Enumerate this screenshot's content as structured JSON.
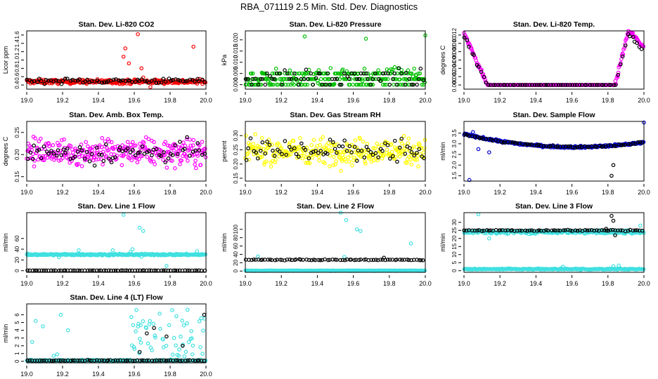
{
  "page": {
    "title": "RBA_071119  2.5 Min. Std. Dev. Diagnostics"
  },
  "chart_data": [
    {
      "type": "scatter",
      "title": "Stan. Dev. Li-820 CO2",
      "xlabel": "",
      "ylabel": "Licor ppm",
      "xlim": [
        19.0,
        20.0
      ],
      "ylim": [
        0.3,
        1.7
      ],
      "xticks": [
        19.0,
        19.2,
        19.4,
        19.6,
        19.8,
        20.0
      ],
      "xtick_labels": [
        "19.0",
        "19.2",
        "19.4",
        "19.6",
        "19.8",
        "20.0"
      ],
      "yticks": [
        0.4,
        0.6,
        0.8,
        1.0,
        1.2,
        1.4,
        1.6
      ],
      "ytick_labels": [
        "0.4",
        "0.6",
        "0.8",
        "1.0",
        "1.2",
        "1.4",
        "1.6"
      ],
      "colors": [
        "#ff0000",
        "#000000"
      ],
      "series": [
        {
          "name": "main",
          "color": "#ff0000",
          "base": 0.48,
          "noise": 0.05,
          "outliers": [
            [
              19.54,
              1.08
            ],
            [
              19.55,
              1.28
            ],
            [
              19.57,
              0.92
            ],
            [
              19.62,
              1.62
            ],
            [
              19.64,
              0.8
            ],
            [
              19.65,
              0.58
            ],
            [
              19.93,
              1.32
            ],
            [
              19.69,
              0.35
            ],
            [
              19.6,
              0.52
            ]
          ]
        },
        {
          "name": "secondary",
          "color": "#000000",
          "base": 0.5,
          "noise": 0.06,
          "outliers": []
        }
      ]
    },
    {
      "type": "scatter",
      "title": "Stan. Dev. Li-820 Pressure",
      "xlabel": "",
      "ylabel": "kPa",
      "xlim": [
        19.0,
        20.0
      ],
      "ylim": [
        -0.002,
        0.024
      ],
      "xticks": [
        19.0,
        19.2,
        19.4,
        19.6,
        19.8,
        20.0
      ],
      "xtick_labels": [
        "19.0",
        "19.2",
        "19.4",
        "19.6",
        "19.8",
        "20.0"
      ],
      "yticks": [
        0.0,
        0.005,
        0.01,
        0.015,
        0.02
      ],
      "ytick_labels": [
        "0.000",
        "0.005",
        "0.010",
        "0.015",
        "0.020"
      ],
      "colors": [
        "#00c000",
        "#000000"
      ],
      "series": [
        {
          "name": "main",
          "color": "#00c000",
          "levels": [
            0.0,
            0.0025,
            0.005
          ],
          "outliers": [
            [
              19.33,
              0.0215
            ],
            [
              19.67,
              0.0205
            ],
            [
              20.0,
              0.022
            ],
            [
              19.83,
              0.0078
            ]
          ]
        },
        {
          "name": "secondary",
          "color": "#000000",
          "levels": [
            0.0,
            0.0025,
            0.005
          ],
          "outliers": []
        }
      ]
    },
    {
      "type": "scatter",
      "title": "Stan. Dev. Li-820 Temp.",
      "xlabel": "",
      "ylabel": "degrees C",
      "xlim": [
        19.0,
        20.0
      ],
      "ylim": [
        -0.001,
        0.013
      ],
      "xticks": [
        19.0,
        19.2,
        19.4,
        19.6,
        19.8,
        20.0
      ],
      "xtick_labels": [
        "19.0",
        "19.2",
        "19.4",
        "19.6",
        "19.8",
        "20.0"
      ],
      "yticks": [
        0.0,
        0.002,
        0.004,
        0.006,
        0.008,
        0.01,
        0.012
      ],
      "ytick_labels": [
        "0.000",
        "0.002",
        "0.004",
        "0.006",
        "0.008",
        "0.010",
        "0.012"
      ],
      "colors": [
        "#ff00ff",
        "#000000"
      ],
      "series": [
        {
          "name": "main",
          "color": "#ff00ff",
          "profile": "valley",
          "edge_max": 0.0125,
          "floor": 0.0,
          "left_end": 19.13,
          "right_start": 19.84
        },
        {
          "name": "secondary",
          "color": "#000000",
          "profile": "valley",
          "edge_max": 0.0118,
          "floor": 0.0,
          "left_end": 19.13,
          "right_start": 19.84
        }
      ]
    },
    {
      "type": "scatter",
      "title": "Stan. Dev. Amb. Box Temp.",
      "xlabel": "",
      "ylabel": "degrees C",
      "xlim": [
        19.0,
        20.0
      ],
      "ylim": [
        0.14,
        0.275
      ],
      "xticks": [
        19.0,
        19.2,
        19.4,
        19.6,
        19.8,
        20.0
      ],
      "xtick_labels": [
        "19.0",
        "19.2",
        "19.4",
        "19.6",
        "19.8",
        "20.0"
      ],
      "yticks": [
        0.15,
        0.2,
        0.25
      ],
      "ytick_labels": [
        "0.15",
        "0.20",
        "0.25"
      ],
      "colors": [
        "#ff00ff",
        "#000000"
      ],
      "series": [
        {
          "name": "main",
          "color": "#ff00ff",
          "base": 0.205,
          "noise": 0.028
        },
        {
          "name": "secondary",
          "color": "#000000",
          "base": 0.205,
          "noise": 0.025
        }
      ]
    },
    {
      "type": "scatter",
      "title": "Stan. Dev. Gas Stream RH",
      "xlabel": "",
      "ylabel": "percent",
      "xlim": [
        19.0,
        20.0
      ],
      "ylim": [
        0.14,
        0.35
      ],
      "xticks": [
        19.0,
        19.2,
        19.4,
        19.6,
        19.8,
        20.0
      ],
      "xtick_labels": [
        "19.0",
        "19.2",
        "19.4",
        "19.6",
        "19.8",
        "20.0"
      ],
      "yticks": [
        0.15,
        0.2,
        0.25,
        0.3
      ],
      "ytick_labels": [
        "0.15",
        "0.20",
        "0.25",
        "0.30"
      ],
      "colors": [
        "#ffff00",
        "#000000"
      ],
      "series": [
        {
          "name": "main",
          "color": "#ffff00",
          "base": 0.245,
          "noise": 0.045
        },
        {
          "name": "secondary",
          "color": "#000000",
          "base": 0.245,
          "noise": 0.045
        }
      ]
    },
    {
      "type": "scatter",
      "title": "Stan. Dev. Sample Flow",
      "xlabel": "",
      "ylabel": "ml/min",
      "xlim": [
        19.0,
        20.0
      ],
      "ylim": [
        1.25,
        4.05
      ],
      "xticks": [
        19.0,
        19.2,
        19.4,
        19.6,
        19.8,
        20.0
      ],
      "xtick_labels": [
        "19.0",
        "19.2",
        "19.4",
        "19.6",
        "19.8",
        "20.0"
      ],
      "yticks": [
        1.5,
        2.0,
        2.5,
        3.0,
        3.5
      ],
      "ytick_labels": [
        "1.5",
        "2.0",
        "2.5",
        "3.0",
        "3.5"
      ],
      "colors": [
        "#0000cd",
        "#000000"
      ],
      "series": [
        {
          "name": "main",
          "color": "#0000cd",
          "profile": "bowl",
          "edge": 3.45,
          "center": 2.85,
          "noise": 0.05,
          "outliers": [
            [
              19.03,
              1.3
            ],
            [
              20.0,
              4.0
            ],
            [
              19.14,
              2.6
            ],
            [
              19.08,
              2.75
            ],
            [
              19.85,
              2.9
            ],
            [
              19.05,
              3.55
            ]
          ]
        },
        {
          "name": "secondary",
          "color": "#000000",
          "profile": "bowl",
          "edge": 3.45,
          "center": 2.85,
          "noise": 0.04,
          "outliers": [
            [
              19.82,
              1.5
            ],
            [
              19.83,
              2.0
            ]
          ]
        }
      ]
    },
    {
      "type": "scatter",
      "title": "Stan. Dev. Line 1 Flow",
      "xlabel": "",
      "ylabel": "ml/min",
      "xlim": [
        19.0,
        20.0
      ],
      "ylim": [
        -3,
        108
      ],
      "xticks": [
        19.0,
        19.2,
        19.4,
        19.6,
        19.8,
        20.0
      ],
      "xtick_labels": [
        "19.0",
        "19.2",
        "19.4",
        "19.6",
        "19.8",
        "20.0"
      ],
      "yticks": [
        0,
        20,
        40,
        60
      ],
      "ytick_labels": [
        "0",
        "20",
        "40",
        "60"
      ],
      "colors": [
        "#40e0e0",
        "#000000"
      ],
      "series": [
        {
          "name": "main",
          "color": "#40e0e0",
          "base": 30,
          "noise": 1.5,
          "outliers": [
            [
              19.54,
              104
            ],
            [
              19.63,
              80
            ],
            [
              19.65,
              74
            ],
            [
              19.59,
              40
            ],
            [
              19.58,
              35
            ],
            [
              19.48,
              38
            ],
            [
              19.29,
              38
            ],
            [
              19.95,
              36
            ],
            [
              19.18,
              25
            ],
            [
              19.78,
              9
            ],
            [
              19.64,
              26
            ]
          ]
        },
        {
          "name": "secondary",
          "color": "#000000",
          "base": 0.5,
          "noise": 0.2,
          "outliers": []
        }
      ]
    },
    {
      "type": "scatter",
      "title": "Stan. Dev. Line 2 Flow",
      "xlabel": "",
      "ylabel": "ml/min",
      "xlim": [
        19.0,
        20.0
      ],
      "ylim": [
        -3,
        140
      ],
      "xticks": [
        19.0,
        19.2,
        19.4,
        19.6,
        19.8,
        20.0
      ],
      "xtick_labels": [
        "19.0",
        "19.2",
        "19.4",
        "19.6",
        "19.8",
        "20.0"
      ],
      "yticks": [
        0,
        20,
        40,
        60,
        80,
        100
      ],
      "ytick_labels": [
        "0",
        "20",
        "40",
        "60",
        "80",
        "100"
      ],
      "colors": [
        "#40e0e0",
        "#000000"
      ],
      "series": [
        {
          "name": "main",
          "color": "#40e0e0",
          "base": 1,
          "noise": 0.6,
          "outliers": [
            [
              19.53,
              140
            ],
            [
              19.56,
              122
            ],
            [
              19.62,
              100
            ],
            [
              19.64,
              96
            ],
            [
              19.92,
              66
            ],
            [
              19.07,
              35
            ],
            [
              19.55,
              34
            ]
          ]
        },
        {
          "name": "secondary",
          "color": "#000000",
          "base": 27,
          "noise": 1.0,
          "outliers": [
            [
              19.77,
              32
            ]
          ]
        }
      ]
    },
    {
      "type": "scatter",
      "title": "Stan. Dev. Line 3 Flow",
      "xlabel": "",
      "ylabel": "ml/min",
      "xlim": [
        19.0,
        20.0
      ],
      "ylim": [
        -1,
        36
      ],
      "xticks": [
        19.0,
        19.2,
        19.4,
        19.6,
        19.8,
        20.0
      ],
      "xtick_labels": [
        "19.0",
        "19.2",
        "19.4",
        "19.6",
        "19.8",
        "20.0"
      ],
      "yticks": [
        0,
        5,
        10,
        15,
        20,
        25,
        30
      ],
      "ytick_labels": [
        "0",
        "5",
        "10",
        "15",
        "20",
        "25",
        "30"
      ],
      "colors": [
        "#40e0e0",
        "#000000"
      ],
      "series": [
        {
          "name": "main",
          "color": "#40e0e0",
          "base": 24,
          "noise": 1.0,
          "low_base": 1.0,
          "low_noise": 0.4,
          "outliers": [
            [
              19.08,
              35
            ],
            [
              19.14,
              20
            ],
            [
              19.55,
              2.5
            ],
            [
              19.83,
              2.8
            ],
            [
              19.86,
              3.2
            ],
            [
              19.98,
              28
            ]
          ]
        },
        {
          "name": "secondary",
          "color": "#000000",
          "base": 25,
          "noise": 0.4,
          "outliers": [
            [
              19.82,
              34
            ],
            [
              19.83,
              31
            ],
            [
              19.84,
              22
            ],
            [
              19.79,
              26
            ]
          ]
        }
      ]
    },
    {
      "type": "scatter",
      "title": "Stan. Dev. Line 4 (LT) Flow",
      "xlabel": "",
      "ylabel": "ml/min",
      "xlim": [
        19.0,
        20.0
      ],
      "ylim": [
        -0.2,
        7.4
      ],
      "xticks": [
        19.0,
        19.2,
        19.4,
        19.6,
        19.8,
        20.0
      ],
      "xtick_labels": [
        "19.0",
        "19.2",
        "19.4",
        "19.6",
        "19.8",
        "20.0"
      ],
      "yticks": [
        0,
        1,
        2,
        3,
        4,
        5,
        6
      ],
      "ytick_labels": [
        "0",
        "1",
        "2",
        "3",
        "4",
        "5",
        "6"
      ],
      "colors": [
        "#40e0e0",
        "#000000"
      ],
      "series": [
        {
          "name": "main",
          "color": "#40e0e0",
          "base": 0.1,
          "noise": 0.1,
          "scatter_zone": [
            19.56,
            20.0
          ],
          "scatter_max": 6.8,
          "outliers": [
            [
              19.03,
              2.5
            ],
            [
              19.05,
              5.2
            ],
            [
              19.09,
              4.5
            ],
            [
              19.19,
              6.0
            ],
            [
              19.23,
              4.0
            ],
            [
              19.17,
              0.9
            ],
            [
              19.15,
              0.7
            ]
          ]
        },
        {
          "name": "secondary",
          "color": "#000000",
          "base": 0.1,
          "noise": 0.05,
          "outliers": [
            [
              19.67,
              3.6
            ],
            [
              19.71,
              4.3
            ],
            [
              19.78,
              3.2
            ],
            [
              19.87,
              2.0
            ],
            [
              19.99,
              6.0
            ],
            [
              19.63,
              1.2
            ]
          ]
        }
      ]
    }
  ]
}
